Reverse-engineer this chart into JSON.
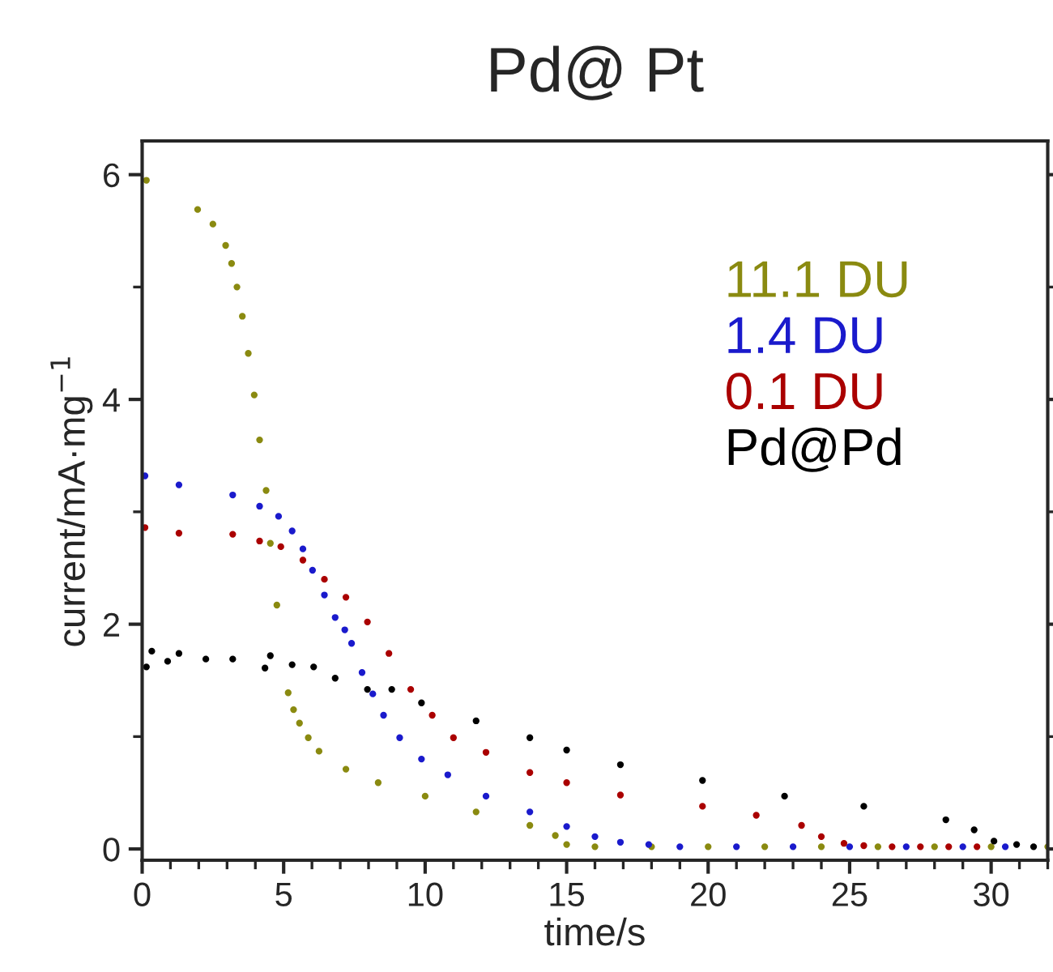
{
  "chart_data": {
    "type": "scatter",
    "title": "Pd@ Pt",
    "xlabel": "time/s",
    "ylabel": "current/mA·mg$^{−1}$",
    "xlim": [
      0,
      32
    ],
    "xticks": [
      0,
      5,
      10,
      15,
      20,
      25,
      30
    ],
    "ylim": [
      -0.1,
      6.3
    ],
    "yticks": [
      0,
      2,
      4,
      6
    ],
    "marker": "circle",
    "legend": "top right",
    "grid": false,
    "series": [
      {
        "name": "11.1 DU",
        "color": "#8a8a10",
        "x": [
          0.15,
          1.96,
          2.5,
          2.95,
          3.16,
          3.35,
          3.54,
          3.75,
          3.96,
          4.15,
          4.38,
          4.53,
          4.76,
          5.16,
          5.35,
          5.56,
          5.87,
          6.25,
          7.2,
          8.34,
          10,
          11.8,
          13.7,
          14.6,
          15.0,
          16,
          18,
          20,
          22,
          24,
          26,
          28,
          30,
          32
        ],
        "values": [
          5.95,
          5.69,
          5.56,
          5.37,
          5.21,
          5.0,
          4.74,
          4.41,
          4.04,
          3.64,
          3.19,
          2.72,
          2.17,
          1.39,
          1.24,
          1.12,
          0.99,
          0.87,
          0.71,
          0.59,
          0.47,
          0.33,
          0.21,
          0.12,
          0.04,
          0.02,
          0.02,
          0.02,
          0.02,
          0.02,
          0.02,
          0.02,
          0.02,
          0.02
        ]
      },
      {
        "name": "1.4 DU",
        "color": "#1a1acc",
        "x": [
          0.1,
          1.3,
          3.2,
          4.15,
          4.82,
          5.3,
          5.68,
          6.02,
          6.44,
          6.82,
          7.16,
          7.4,
          7.77,
          8.15,
          8.53,
          9.1,
          9.87,
          10.8,
          12.15,
          13.7,
          15.0,
          16.0,
          16.9,
          17.9,
          19,
          21,
          23,
          25,
          27,
          29,
          30.5
        ],
        "values": [
          3.32,
          3.24,
          3.15,
          3.05,
          2.96,
          2.83,
          2.67,
          2.48,
          2.26,
          2.06,
          1.95,
          1.83,
          1.57,
          1.38,
          1.19,
          0.99,
          0.8,
          0.66,
          0.47,
          0.33,
          0.2,
          0.11,
          0.06,
          0.04,
          0.02,
          0.02,
          0.02,
          0.02,
          0.02,
          0.02,
          0.02
        ]
      },
      {
        "name": "0.1 DU",
        "color": "#aa0000",
        "x": [
          0.1,
          1.3,
          3.2,
          4.15,
          4.9,
          5.68,
          6.44,
          7.2,
          7.96,
          8.72,
          9.49,
          10.25,
          11,
          12.15,
          13.7,
          15.0,
          16.9,
          19.8,
          21.7,
          23.3,
          24,
          24.8,
          25.5,
          26.5,
          27.5,
          28.5,
          29.5
        ],
        "values": [
          2.86,
          2.81,
          2.8,
          2.74,
          2.69,
          2.57,
          2.4,
          2.24,
          2.02,
          1.74,
          1.42,
          1.19,
          0.99,
          0.86,
          0.68,
          0.59,
          0.48,
          0.38,
          0.3,
          0.21,
          0.11,
          0.05,
          0.03,
          0.02,
          0.02,
          0.02,
          0.02
        ]
      },
      {
        "name": "Pd@Pd",
        "color": "#000000",
        "x": [
          0.15,
          0.34,
          0.9,
          1.3,
          2.25,
          3.2,
          4.34,
          4.53,
          5.3,
          6.06,
          6.82,
          7.96,
          8.82,
          9.87,
          11.8,
          13.7,
          15.0,
          16.9,
          19.8,
          22.7,
          25.5,
          28.4,
          29.4,
          30.1,
          30.9,
          31.5
        ],
        "values": [
          1.62,
          1.76,
          1.67,
          1.74,
          1.69,
          1.69,
          1.61,
          1.72,
          1.64,
          1.62,
          1.52,
          1.42,
          1.42,
          1.3,
          1.14,
          0.99,
          0.88,
          0.75,
          0.61,
          0.47,
          0.38,
          0.26,
          0.17,
          0.07,
          0.04,
          0.02
        ]
      }
    ]
  }
}
